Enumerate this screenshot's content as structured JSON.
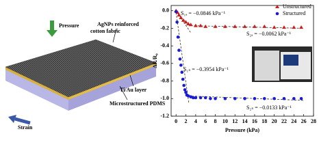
{
  "diagram": {
    "pressure": "Pressure",
    "fabric": "AgNPs reinforced cotton fabric",
    "tiau": "Ti/Au layer",
    "pdms": "Microstructured PDMS",
    "strain": "Strain"
  },
  "chart_data": {
    "type": "scatter",
    "xlabel": "Pressure (kPa)",
    "ylabel": "ΔR/R₀",
    "xlim": [
      -1,
      28
    ],
    "ylim": [
      -1.2,
      0.06
    ],
    "xticks": [
      0,
      2,
      4,
      6,
      8,
      10,
      12,
      14,
      16,
      18,
      20,
      22,
      24,
      26,
      28
    ],
    "yticks": [
      {
        "value": 0,
        "label": "0.0"
      },
      -0.2,
      -0.4,
      -0.6,
      -0.8,
      {
        "value": -1,
        "label": "-1.0"
      },
      -1.2
    ],
    "legend": "upper right",
    "annotations": [
      "S₁ₐ = −0.0846 kPa⁻¹",
      "S₂ₐ = −0.0062 kPa⁻¹",
      "S₁ₛ = −0.3954 kPa⁻¹",
      "S₂ₛ = −0.0133 kPa⁻¹"
    ],
    "series": [
      {
        "name": "Unstructured",
        "color": "#c81e1e",
        "marker": "triangle",
        "x": [
          0,
          0.3,
          0.6,
          1,
          1.5,
          2,
          2.5,
          3,
          4,
          5,
          6,
          8,
          10,
          12,
          14,
          16,
          18,
          20,
          22,
          24,
          25.5
        ],
        "values": [
          0,
          -0.02,
          -0.05,
          -0.08,
          -0.11,
          -0.13,
          -0.15,
          -0.16,
          -0.17,
          -0.17,
          -0.18,
          -0.18,
          -0.18,
          -0.18,
          -0.18,
          -0.18,
          -0.18,
          -0.19,
          -0.19,
          -0.19,
          -0.19
        ]
      },
      {
        "name": "Structured",
        "color": "#1a1ad8",
        "marker": "circle",
        "x": [
          0,
          0.2,
          0.4,
          0.6,
          0.8,
          1,
          1.2,
          1.4,
          1.6,
          1.8,
          2,
          2.2,
          2.5,
          3,
          3.5,
          4,
          5,
          6,
          7,
          8,
          10,
          12,
          14,
          16,
          18,
          20,
          22,
          24,
          25.5
        ],
        "values": [
          -0.01,
          -0.13,
          -0.3,
          -0.45,
          -0.55,
          -0.62,
          -0.7,
          -0.78,
          -0.85,
          -0.9,
          -0.93,
          -0.96,
          -0.97,
          -0.98,
          -0.99,
          -0.99,
          -0.99,
          -0.99,
          -1,
          -1,
          -1,
          -1,
          -1,
          -1,
          -1,
          -1,
          -1,
          -1,
          -1
        ]
      }
    ]
  }
}
